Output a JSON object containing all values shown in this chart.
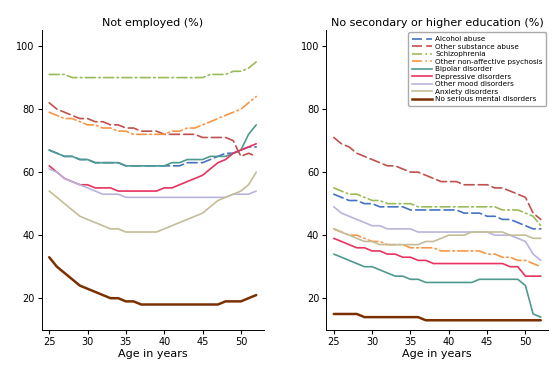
{
  "ages": [
    25,
    26,
    27,
    28,
    29,
    30,
    31,
    32,
    33,
    34,
    35,
    36,
    37,
    38,
    39,
    40,
    41,
    42,
    43,
    44,
    45,
    46,
    47,
    48,
    49,
    50,
    51,
    52
  ],
  "left_title": "Not employed (%)",
  "right_title": "No secondary or higher education (%)",
  "xlabel": "Age in years",
  "ylim": [
    10,
    105
  ],
  "yticks": [
    20,
    40,
    60,
    80,
    100
  ],
  "xticks": [
    25,
    30,
    35,
    40,
    45,
    50
  ],
  "series": [
    {
      "name": "Alcohol abuse",
      "color": "#4472c4",
      "linestyle": "dashed",
      "linewidth": 1.2,
      "left_y": [
        67,
        66,
        65,
        65,
        64,
        64,
        63,
        63,
        63,
        63,
        62,
        62,
        62,
        62,
        62,
        62,
        62,
        62,
        63,
        63,
        63,
        64,
        65,
        66,
        66,
        67,
        68,
        68
      ],
      "right_y": [
        53,
        52,
        51,
        51,
        50,
        50,
        49,
        49,
        49,
        49,
        48,
        48,
        48,
        48,
        48,
        48,
        48,
        47,
        47,
        47,
        46,
        46,
        45,
        45,
        44,
        43,
        42,
        42
      ]
    },
    {
      "name": "Other substance abuse",
      "color": "#c0504d",
      "linestyle": "dashed",
      "linewidth": 1.2,
      "left_y": [
        82,
        80,
        79,
        78,
        77,
        77,
        76,
        76,
        75,
        75,
        74,
        74,
        73,
        73,
        73,
        72,
        72,
        72,
        72,
        72,
        71,
        71,
        71,
        71,
        70,
        65,
        66,
        65
      ],
      "right_y": [
        71,
        69,
        68,
        66,
        65,
        64,
        63,
        62,
        62,
        61,
        60,
        60,
        59,
        58,
        57,
        57,
        57,
        56,
        56,
        56,
        56,
        55,
        55,
        54,
        53,
        52,
        47,
        45
      ]
    },
    {
      "name": "Schizophrenia",
      "color": "#9bbb59",
      "linestyle": "dashdot",
      "linewidth": 1.2,
      "left_y": [
        91,
        91,
        91,
        90,
        90,
        90,
        90,
        90,
        90,
        90,
        90,
        90,
        90,
        90,
        90,
        90,
        90,
        90,
        90,
        90,
        90,
        91,
        91,
        91,
        92,
        92,
        93,
        95
      ],
      "right_y": [
        55,
        54,
        53,
        53,
        52,
        51,
        51,
        50,
        50,
        50,
        50,
        49,
        49,
        49,
        49,
        49,
        49,
        49,
        49,
        49,
        49,
        49,
        48,
        48,
        48,
        47,
        46,
        43
      ]
    },
    {
      "name": "Other non-affective psychosis",
      "color": "#f79646",
      "linestyle": "dashdot",
      "linewidth": 1.2,
      "left_y": [
        79,
        78,
        77,
        77,
        76,
        75,
        75,
        74,
        74,
        73,
        73,
        72,
        72,
        72,
        72,
        72,
        73,
        73,
        74,
        74,
        75,
        76,
        77,
        78,
        79,
        80,
        82,
        84
      ],
      "right_y": [
        42,
        41,
        40,
        40,
        39,
        38,
        38,
        37,
        37,
        37,
        36,
        36,
        36,
        36,
        35,
        35,
        35,
        35,
        35,
        35,
        34,
        34,
        33,
        33,
        32,
        32,
        31,
        30
      ]
    },
    {
      "name": "Bipolar disorder",
      "color": "#4e9a8f",
      "linestyle": "solid",
      "linewidth": 1.2,
      "left_y": [
        67,
        66,
        65,
        65,
        64,
        64,
        63,
        63,
        63,
        63,
        62,
        62,
        62,
        62,
        62,
        62,
        63,
        63,
        64,
        64,
        64,
        65,
        65,
        65,
        66,
        67,
        72,
        75
      ],
      "right_y": [
        34,
        33,
        32,
        31,
        30,
        30,
        29,
        28,
        27,
        27,
        26,
        26,
        25,
        25,
        25,
        25,
        25,
        25,
        25,
        26,
        26,
        26,
        26,
        26,
        26,
        24,
        15,
        14
      ]
    },
    {
      "name": "Depressive disorders",
      "color": "#e6335f",
      "linestyle": "solid",
      "linewidth": 1.2,
      "left_y": [
        62,
        60,
        58,
        57,
        56,
        56,
        55,
        55,
        55,
        54,
        54,
        54,
        54,
        54,
        54,
        55,
        55,
        56,
        57,
        58,
        59,
        61,
        63,
        64,
        66,
        67,
        68,
        69
      ],
      "right_y": [
        39,
        38,
        37,
        36,
        36,
        35,
        35,
        34,
        34,
        33,
        33,
        32,
        32,
        31,
        31,
        31,
        31,
        31,
        31,
        31,
        31,
        31,
        31,
        30,
        30,
        27,
        27,
        27
      ]
    },
    {
      "name": "Other mood disorders",
      "color": "#b8b4dc",
      "linestyle": "solid",
      "linewidth": 1.2,
      "left_y": [
        61,
        60,
        58,
        57,
        56,
        55,
        54,
        53,
        53,
        53,
        52,
        52,
        52,
        52,
        52,
        52,
        52,
        52,
        52,
        52,
        52,
        52,
        52,
        52,
        53,
        53,
        53,
        54
      ],
      "right_y": [
        49,
        47,
        46,
        45,
        44,
        43,
        43,
        42,
        42,
        42,
        42,
        41,
        41,
        41,
        41,
        41,
        41,
        41,
        41,
        41,
        41,
        40,
        40,
        40,
        39,
        38,
        34,
        32
      ]
    },
    {
      "name": "Anxiety disorders",
      "color": "#c4bd97",
      "linestyle": "solid",
      "linewidth": 1.2,
      "left_y": [
        54,
        52,
        50,
        48,
        46,
        45,
        44,
        43,
        42,
        42,
        41,
        41,
        41,
        41,
        41,
        42,
        43,
        44,
        45,
        46,
        47,
        49,
        51,
        52,
        53,
        54,
        56,
        60
      ],
      "right_y": [
        42,
        41,
        40,
        39,
        38,
        38,
        37,
        37,
        37,
        37,
        37,
        37,
        38,
        38,
        39,
        40,
        40,
        40,
        41,
        41,
        41,
        41,
        41,
        40,
        40,
        40,
        39,
        39
      ]
    },
    {
      "name": "No serious mental disorders",
      "color": "#7b3000",
      "linestyle": "solid",
      "linewidth": 1.8,
      "left_y": [
        33,
        30,
        28,
        26,
        24,
        23,
        22,
        21,
        20,
        20,
        19,
        19,
        18,
        18,
        18,
        18,
        18,
        18,
        18,
        18,
        18,
        18,
        18,
        19,
        19,
        19,
        20,
        21
      ],
      "right_y": [
        15,
        15,
        15,
        15,
        14,
        14,
        14,
        14,
        14,
        14,
        14,
        14,
        13,
        13,
        13,
        13,
        13,
        13,
        13,
        13,
        13,
        13,
        13,
        13,
        13,
        13,
        13,
        13
      ]
    }
  ]
}
